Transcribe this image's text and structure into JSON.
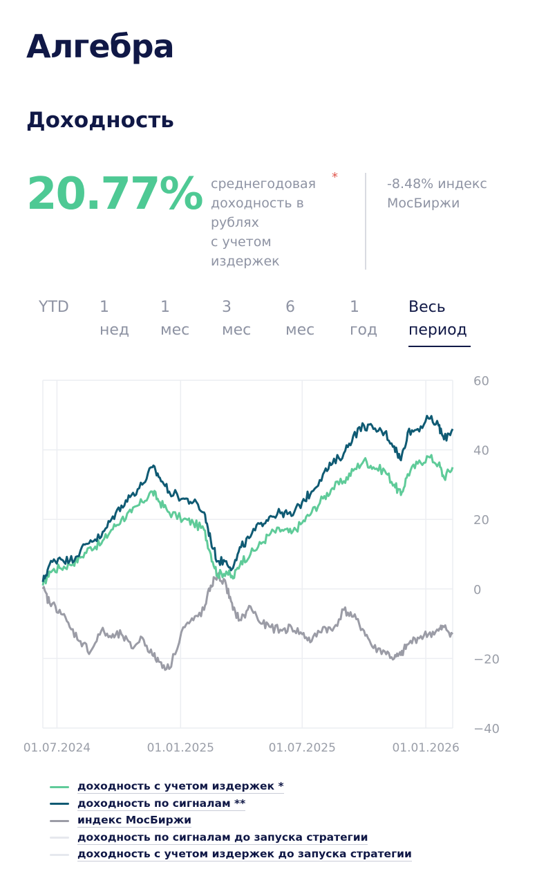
{
  "header": {
    "title": "Алгебра",
    "subtitle": "Доходность"
  },
  "summary": {
    "value": "20.77%",
    "description": "среднегодовая\nдоходность в\nрублях\nс учетом\nиздержек",
    "asterisk": "*",
    "index_note": "-8.48% индекс\nМосБиржи"
  },
  "tabs": [
    {
      "label": "YTD",
      "active": false
    },
    {
      "label": "1\nнед",
      "active": false
    },
    {
      "label": "1\nмес",
      "active": false
    },
    {
      "label": "3\nмес",
      "active": false
    },
    {
      "label": "6\nмес",
      "active": false
    },
    {
      "label": "1\nгод",
      "active": false
    },
    {
      "label": "Весь\nпериод",
      "active": true
    }
  ],
  "chart_data": {
    "type": "line",
    "x_start": "2024-06-10",
    "x_end": "2026-02-10",
    "x_ticks": [
      "01.07.2024",
      "01.01.2025",
      "01.07.2025",
      "01.01.2026"
    ],
    "x_tick_dates": [
      "2024-07-01",
      "2025-01-01",
      "2025-07-01",
      "2026-01-01"
    ],
    "ylim": [
      -40,
      60
    ],
    "y_ticks": [
      60,
      40,
      20,
      0,
      -20,
      -40
    ],
    "y_tick_labels": [
      "60",
      "40",
      "20",
      "0",
      "−20",
      "−40"
    ],
    "grid": true,
    "series": [
      {
        "name": "доходность с учетом издержек *",
        "color": "#5fcb99",
        "points": [
          [
            "2024-06-10",
            1
          ],
          [
            "2024-06-20",
            5
          ],
          [
            "2024-07-05",
            6
          ],
          [
            "2024-07-20",
            7
          ],
          [
            "2024-08-05",
            9
          ],
          [
            "2024-08-20",
            12
          ],
          [
            "2024-09-05",
            13
          ],
          [
            "2024-09-20",
            17
          ],
          [
            "2024-10-05",
            20
          ],
          [
            "2024-10-20",
            22
          ],
          [
            "2024-11-05",
            25
          ],
          [
            "2024-11-20",
            28
          ],
          [
            "2024-12-01",
            25
          ],
          [
            "2024-12-15",
            22
          ],
          [
            "2025-01-05",
            20
          ],
          [
            "2025-01-20",
            19
          ],
          [
            "2025-02-05",
            17
          ],
          [
            "2025-02-15",
            10
          ],
          [
            "2025-02-25",
            4
          ],
          [
            "2025-03-10",
            5
          ],
          [
            "2025-03-20",
            3
          ],
          [
            "2025-04-01",
            8
          ],
          [
            "2025-04-15",
            10
          ],
          [
            "2025-05-01",
            13
          ],
          [
            "2025-05-15",
            16
          ],
          [
            "2025-06-01",
            17
          ],
          [
            "2025-06-15",
            16
          ],
          [
            "2025-07-01",
            19
          ],
          [
            "2025-07-15",
            22
          ],
          [
            "2025-08-01",
            26
          ],
          [
            "2025-08-15",
            29
          ],
          [
            "2025-09-01",
            31
          ],
          [
            "2025-09-15",
            34
          ],
          [
            "2025-10-01",
            37
          ],
          [
            "2025-10-15",
            35
          ],
          [
            "2025-11-01",
            34
          ],
          [
            "2025-11-15",
            30
          ],
          [
            "2025-11-25",
            27
          ],
          [
            "2025-12-05",
            33
          ],
          [
            "2025-12-20",
            36
          ],
          [
            "2026-01-05",
            38
          ],
          [
            "2026-01-20",
            36
          ],
          [
            "2026-01-28",
            32
          ],
          [
            "2026-02-10",
            35
          ]
        ]
      },
      {
        "name": "доходность по сигналам **",
        "color": "#0f5a73",
        "points": [
          [
            "2024-06-10",
            2
          ],
          [
            "2024-06-20",
            7
          ],
          [
            "2024-07-05",
            9
          ],
          [
            "2024-07-20",
            8
          ],
          [
            "2024-08-05",
            11
          ],
          [
            "2024-08-20",
            14
          ],
          [
            "2024-09-05",
            15
          ],
          [
            "2024-09-20",
            20
          ],
          [
            "2024-10-05",
            24
          ],
          [
            "2024-10-20",
            27
          ],
          [
            "2024-11-05",
            30
          ],
          [
            "2024-11-20",
            35
          ],
          [
            "2024-12-01",
            32
          ],
          [
            "2024-12-15",
            28
          ],
          [
            "2025-01-05",
            26
          ],
          [
            "2025-01-20",
            25
          ],
          [
            "2025-02-05",
            22
          ],
          [
            "2025-02-15",
            14
          ],
          [
            "2025-02-25",
            8
          ],
          [
            "2025-03-10",
            8
          ],
          [
            "2025-03-20",
            6
          ],
          [
            "2025-04-01",
            12
          ],
          [
            "2025-04-15",
            15
          ],
          [
            "2025-05-01",
            19
          ],
          [
            "2025-05-15",
            21
          ],
          [
            "2025-06-01",
            22
          ],
          [
            "2025-06-15",
            21
          ],
          [
            "2025-07-01",
            25
          ],
          [
            "2025-07-15",
            28
          ],
          [
            "2025-08-01",
            33
          ],
          [
            "2025-08-15",
            36
          ],
          [
            "2025-09-01",
            39
          ],
          [
            "2025-09-15",
            44
          ],
          [
            "2025-10-01",
            47
          ],
          [
            "2025-10-15",
            46
          ],
          [
            "2025-11-01",
            45
          ],
          [
            "2025-11-15",
            41
          ],
          [
            "2025-11-25",
            37
          ],
          [
            "2025-12-05",
            45
          ],
          [
            "2025-12-20",
            46
          ],
          [
            "2026-01-05",
            49
          ],
          [
            "2026-01-20",
            47
          ],
          [
            "2026-01-28",
            43
          ],
          [
            "2026-02-10",
            46
          ]
        ]
      },
      {
        "name": "индекс МосБиржи",
        "color": "#9b9ca6",
        "points": [
          [
            "2024-06-10",
            0
          ],
          [
            "2024-06-20",
            -4
          ],
          [
            "2024-07-05",
            -6
          ],
          [
            "2024-07-20",
            -11
          ],
          [
            "2024-08-05",
            -15
          ],
          [
            "2024-08-20",
            -18
          ],
          [
            "2024-09-05",
            -12
          ],
          [
            "2024-09-20",
            -14
          ],
          [
            "2024-10-05",
            -13
          ],
          [
            "2024-10-20",
            -17
          ],
          [
            "2024-11-05",
            -14
          ],
          [
            "2024-11-20",
            -19
          ],
          [
            "2024-12-01",
            -21
          ],
          [
            "2024-12-15",
            -23
          ],
          [
            "2025-01-05",
            -11
          ],
          [
            "2025-01-20",
            -9
          ],
          [
            "2025-02-05",
            -6
          ],
          [
            "2025-02-15",
            1
          ],
          [
            "2025-02-25",
            4
          ],
          [
            "2025-03-10",
            1
          ],
          [
            "2025-03-20",
            -6
          ],
          [
            "2025-04-01",
            -9
          ],
          [
            "2025-04-15",
            -5
          ],
          [
            "2025-05-01",
            -10
          ],
          [
            "2025-05-15",
            -11
          ],
          [
            "2025-06-01",
            -12
          ],
          [
            "2025-06-15",
            -11
          ],
          [
            "2025-07-01",
            -13
          ],
          [
            "2025-07-15",
            -15
          ],
          [
            "2025-08-01",
            -11
          ],
          [
            "2025-08-15",
            -12
          ],
          [
            "2025-09-01",
            -6
          ],
          [
            "2025-09-15",
            -8
          ],
          [
            "2025-10-01",
            -12
          ],
          [
            "2025-10-15",
            -17
          ],
          [
            "2025-11-01",
            -18
          ],
          [
            "2025-11-15",
            -20
          ],
          [
            "2025-11-25",
            -19
          ],
          [
            "2025-12-05",
            -16
          ],
          [
            "2025-12-20",
            -14
          ],
          [
            "2026-01-05",
            -13
          ],
          [
            "2026-01-20",
            -12
          ],
          [
            "2026-01-28",
            -11
          ],
          [
            "2026-02-10",
            -13
          ]
        ]
      }
    ]
  },
  "legend": [
    {
      "label": "доходность с учетом издержек *",
      "color": "#5fcb99"
    },
    {
      "label": "доходность по сигналам **",
      "color": "#0f5a73"
    },
    {
      "label": "индекс МосБиржи",
      "color": "#9b9ca6"
    },
    {
      "label": "доходность по сигналам до запуска стратегии",
      "color": "#e6e8ee"
    },
    {
      "label": "доходность с учетом издержек до запуска стратегии",
      "color": "#e6e8ee"
    }
  ]
}
